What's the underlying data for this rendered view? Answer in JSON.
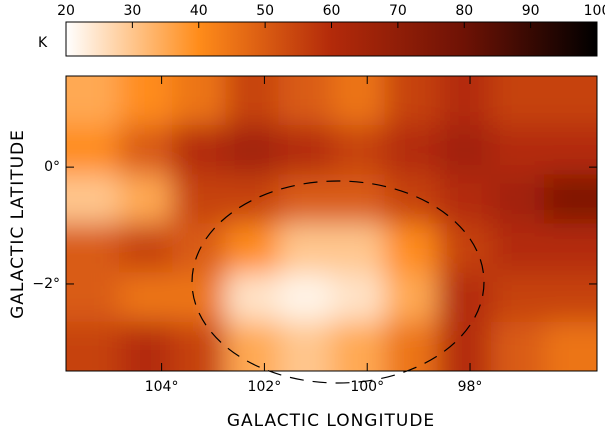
{
  "chart_data": {
    "type": "heatmap",
    "xlabel": "GALACTIC LONGITUDE",
    "ylabel": "GALACTIC LATITUDE",
    "xlim": [
      105.86,
      95.53
    ],
    "ylim": [
      -3.49,
      1.56
    ],
    "xticks": [
      {
        "value": 104,
        "label": "104°"
      },
      {
        "value": 102,
        "label": "102°"
      },
      {
        "value": 100,
        "label": "100°"
      },
      {
        "value": 98,
        "label": "98°"
      }
    ],
    "yticks": [
      {
        "value": 0,
        "label": "0°"
      },
      {
        "value": -2,
        "label": "−2°"
      }
    ],
    "z": [
      [
        35,
        40,
        45,
        55,
        50,
        45,
        55,
        60,
        55,
        55
      ],
      [
        40,
        50,
        60,
        65,
        60,
        55,
        60,
        65,
        60,
        60
      ],
      [
        30,
        35,
        55,
        55,
        50,
        50,
        55,
        60,
        65,
        75
      ],
      [
        50,
        55,
        50,
        40,
        30,
        30,
        40,
        55,
        60,
        60
      ],
      [
        50,
        45,
        45,
        25,
        22,
        25,
        35,
        60,
        55,
        55
      ],
      [
        55,
        60,
        55,
        35,
        30,
        35,
        45,
        60,
        50,
        45
      ]
    ],
    "colormap": [
      "#ffffff",
      "#ff8c1a",
      "#b32a0a",
      "#6e1205",
      "#000000"
    ],
    "colorbar": {
      "label": "K",
      "lim": [
        20,
        100
      ],
      "ticks": [
        20,
        30,
        40,
        50,
        60,
        70,
        80,
        90,
        100
      ]
    }
  }
}
